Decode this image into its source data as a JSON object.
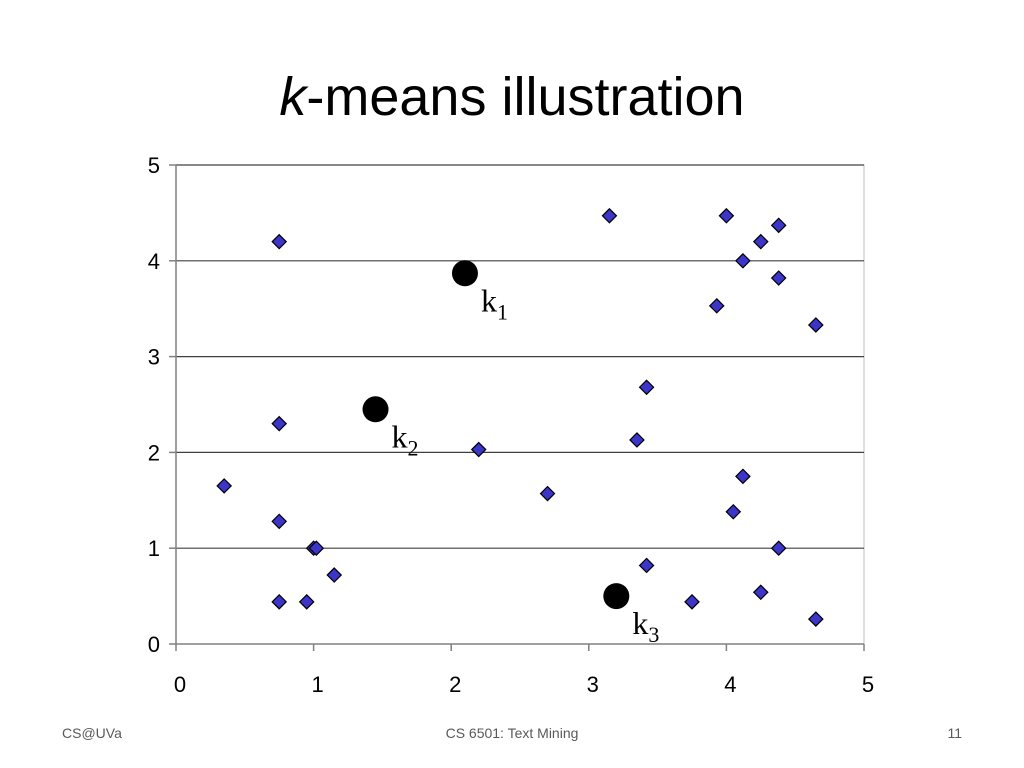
{
  "slide": {
    "title_var": "k",
    "title_rest": "-means illustration"
  },
  "footer": {
    "left": "CS@UVa",
    "center": "CS 6501: Text Mining",
    "page_number": "11"
  },
  "colors": {
    "point_fill": "#3b35c9",
    "point_stroke": "#000000",
    "centroid": "#000000",
    "gridline": "#404040",
    "axis": "#808080"
  },
  "chart_data": {
    "type": "scatter",
    "xlim": [
      0,
      5
    ],
    "ylim": [
      0,
      5
    ],
    "xticks": [
      "0",
      "1",
      "2",
      "3",
      "4",
      "5"
    ],
    "yticks": [
      "0",
      "1",
      "2",
      "3",
      "4",
      "5"
    ],
    "horizontal_grid": true,
    "points": [
      {
        "x": 0.75,
        "y": 4.2
      },
      {
        "x": 0.75,
        "y": 2.3
      },
      {
        "x": 0.35,
        "y": 1.65
      },
      {
        "x": 0.75,
        "y": 1.28
      },
      {
        "x": 1.0,
        "y": 1.0
      },
      {
        "x": 1.02,
        "y": 1.0
      },
      {
        "x": 1.15,
        "y": 0.72
      },
      {
        "x": 0.75,
        "y": 0.44
      },
      {
        "x": 0.95,
        "y": 0.44
      },
      {
        "x": 2.2,
        "y": 2.03
      },
      {
        "x": 2.7,
        "y": 1.57
      },
      {
        "x": 3.15,
        "y": 4.47
      },
      {
        "x": 3.42,
        "y": 2.68
      },
      {
        "x": 3.35,
        "y": 2.13
      },
      {
        "x": 3.42,
        "y": 0.82
      },
      {
        "x": 3.75,
        "y": 0.44
      },
      {
        "x": 4.0,
        "y": 4.47
      },
      {
        "x": 4.25,
        "y": 4.2
      },
      {
        "x": 4.38,
        "y": 4.37
      },
      {
        "x": 4.12,
        "y": 4.0
      },
      {
        "x": 4.38,
        "y": 3.82
      },
      {
        "x": 3.93,
        "y": 3.53
      },
      {
        "x": 4.65,
        "y": 3.33
      },
      {
        "x": 4.12,
        "y": 1.75
      },
      {
        "x": 4.05,
        "y": 1.38
      },
      {
        "x": 4.38,
        "y": 1.0
      },
      {
        "x": 4.25,
        "y": 0.54
      },
      {
        "x": 4.65,
        "y": 0.26
      }
    ],
    "centroids": [
      {
        "label": "k",
        "sub": "1",
        "x": 2.1,
        "y": 3.87
      },
      {
        "label": "k",
        "sub": "2",
        "x": 1.45,
        "y": 2.45
      },
      {
        "label": "k",
        "sub": "3",
        "x": 3.2,
        "y": 0.5
      }
    ]
  }
}
